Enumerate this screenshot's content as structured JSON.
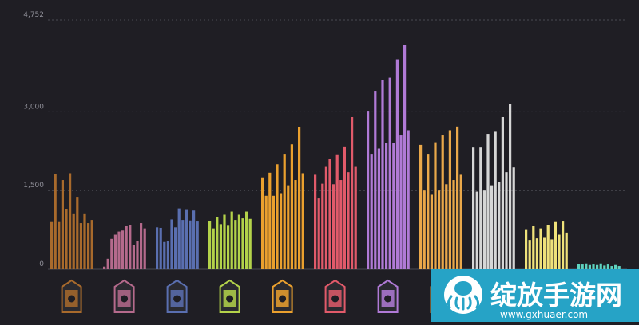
{
  "chart_data": {
    "type": "bar",
    "ylim": [
      0,
      4752
    ],
    "y_ticks": [
      {
        "value": 0,
        "label": "0"
      },
      {
        "value": 1500,
        "label": "1,500"
      },
      {
        "value": 3000,
        "label": "3,000"
      },
      {
        "value": 4752,
        "label": "4,752"
      }
    ],
    "grid": true,
    "groups": [
      {
        "color": "#a86a2c",
        "icon": "open-hand-icon",
        "values": [
          900,
          1820,
          900,
          1700,
          1150,
          1830,
          1050,
          1380,
          880,
          1050,
          880,
          940
        ]
      },
      {
        "color": "#b56a8c",
        "icon": "mask-pair-icon",
        "values": [
          50,
          200,
          580,
          660,
          720,
          740,
          820,
          840,
          460,
          540,
          880,
          780
        ]
      },
      {
        "color": "#5a6fb0",
        "icon": "eye-drop-icon",
        "values": [
          800,
          790,
          520,
          540,
          950,
          800,
          1160,
          940,
          1130,
          930,
          1120,
          910
        ]
      },
      {
        "color": "#b3d24a",
        "icon": "skull-icon",
        "values": [
          920,
          780,
          990,
          860,
          1040,
          830,
          1100,
          940,
          1040,
          970,
          1100,
          960
        ]
      },
      {
        "color": "#eaa02e",
        "icon": "cross-icon",
        "values": [
          1750,
          1400,
          1840,
          1400,
          2000,
          1450,
          2200,
          1600,
          2380,
          1700,
          2710,
          1830
        ]
      },
      {
        "color": "#e15a6a",
        "icon": "horned-demon-icon",
        "values": [
          1800,
          1350,
          1630,
          1950,
          2100,
          1620,
          2190,
          1700,
          2340,
          1850,
          2900,
          1950
        ]
      },
      {
        "color": "#b07ad6",
        "icon": "crown-icon",
        "values": [
          3020,
          2200,
          3400,
          2300,
          3600,
          2400,
          3650,
          2400,
          4000,
          2550,
          4280,
          2650
        ]
      },
      {
        "color": "#eaa84a",
        "icon": "fist-icon",
        "values": [
          2370,
          1500,
          2200,
          1420,
          2420,
          1500,
          2550,
          1620,
          2650,
          1700,
          2720,
          1800
        ]
      },
      {
        "color": "#d6d6d6",
        "icon": "wolf-icon",
        "values": [
          2320,
          1480,
          2320,
          1500,
          2580,
          1600,
          2620,
          1670,
          2900,
          1850,
          3150,
          1940
        ]
      },
      {
        "color": "#efe27a",
        "icon": "bottle-icon",
        "values": [
          750,
          560,
          820,
          590,
          780,
          600,
          840,
          570,
          900,
          660,
          910,
          700
        ]
      },
      {
        "color": "#5fd3bf",
        "icon": "leaf-icon",
        "values": [
          100,
          90,
          110,
          80,
          90,
          80,
          110,
          70,
          90,
          60,
          80,
          60
        ]
      }
    ]
  },
  "watermark": {
    "brand": "绽放手游网",
    "url": "www.gxhuaer.com",
    "logo": "octopus-logo"
  }
}
